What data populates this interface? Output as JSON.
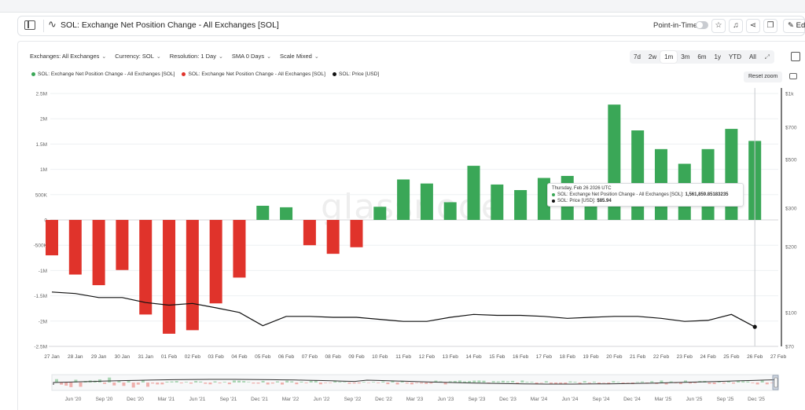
{
  "header": {
    "title": "SOL: Exchange Net Position Change - All Exchanges [SOL]",
    "point_in_time_label": "Point-in-Time",
    "edit_label": "Edi"
  },
  "filters": [
    {
      "label": "Exchanges: All Exchanges"
    },
    {
      "label": "Currency: SOL"
    },
    {
      "label": "Resolution: 1 Day"
    },
    {
      "label": "SMA 0 Days"
    },
    {
      "label": "Scale Mixed"
    }
  ],
  "ranges": [
    {
      "label": "7d",
      "active": false
    },
    {
      "label": "2w",
      "active": false
    },
    {
      "label": "1m",
      "active": true
    },
    {
      "label": "3m",
      "active": false
    },
    {
      "label": "6m",
      "active": false
    },
    {
      "label": "1y",
      "active": false
    },
    {
      "label": "YTD",
      "active": false
    },
    {
      "label": "All",
      "active": false
    }
  ],
  "reset_zoom_label": "Reset zoom",
  "watermark": "glassnode",
  "legend": [
    {
      "label": "SOL: Exchange Net Position Change - All Exchanges [SOL]",
      "color": "#3aa757"
    },
    {
      "label": "SOL: Exchange Net Position Change - All Exchanges [SOL]",
      "color": "#e0332b"
    },
    {
      "label": "SOL: Price [USD]",
      "color": "#111111"
    }
  ],
  "tooltip": {
    "date": "Thursday, Feb 26 2026 UTC",
    "row1_label": "SOL: Exchange Net Position Change - All Exchanges [SOL]:",
    "row1_value": "1,561,859.85183235",
    "row2_label": "SOL: Price [USD]:",
    "row2_value": "$85.94"
  },
  "colors": {
    "positive": "#3aa757",
    "negative": "#e0332b",
    "price": "#111111"
  },
  "chart_data": {
    "type": "bar",
    "title": "SOL: Exchange Net Position Change - All Exchanges [SOL]",
    "categories": [
      "27 Jan",
      "28 Jan",
      "29 Jan",
      "30 Jan",
      "31 Jan",
      "01 Feb",
      "02 Feb",
      "03 Feb",
      "04 Feb",
      "05 Feb",
      "06 Feb",
      "07 Feb",
      "08 Feb",
      "09 Feb",
      "10 Feb",
      "11 Feb",
      "12 Feb",
      "13 Feb",
      "14 Feb",
      "15 Feb",
      "16 Feb",
      "17 Feb",
      "18 Feb",
      "19 Feb",
      "20 Feb",
      "21 Feb",
      "22 Feb",
      "23 Feb",
      "24 Feb",
      "25 Feb",
      "26 Feb",
      "27 Feb"
    ],
    "series": [
      {
        "name": "SOL: Exchange Net Position Change - All Exchanges [SOL]",
        "axis": "left",
        "values": [
          -700000,
          -1080000,
          -1290000,
          -990000,
          -1870000,
          -2250000,
          -2180000,
          -1650000,
          -1140000,
          280000,
          250000,
          -500000,
          -670000,
          -540000,
          260000,
          800000,
          720000,
          350000,
          1070000,
          700000,
          590000,
          830000,
          870000,
          520000,
          2280000,
          1770000,
          1400000,
          1110000,
          1400000,
          1800000,
          1561859.85,
          null
        ]
      },
      {
        "name": "SOL: Price [USD]",
        "axis": "right",
        "type": "line",
        "values": [
          124,
          122,
          117,
          117,
          111,
          108,
          110,
          105,
          100,
          87,
          96,
          96,
          95,
          95,
          93,
          91,
          91,
          95,
          98,
          97,
          97,
          96,
          94,
          95,
          96,
          96,
          94,
          91,
          92,
          98,
          85.94,
          null
        ]
      }
    ],
    "y_left": {
      "ylim": [
        -2500000,
        2500000
      ],
      "ticks": [
        "2.5M",
        "2M",
        "1.5M",
        "1M",
        "500K",
        "0",
        "-500K",
        "-1M",
        "-1.5M",
        "-2M",
        "-2.5M"
      ]
    },
    "y_right": {
      "scale": "log",
      "ylim": [
        70,
        1000
      ],
      "ticks": [
        "$1k",
        "$700",
        "$500",
        "$300",
        "$200",
        "$100",
        "$70"
      ]
    },
    "grid": true,
    "legend_position": "top-left"
  },
  "navigator": {
    "labels": [
      "Jun '20",
      "Sep '20",
      "Dec '20",
      "Mar '21",
      "Jun '21",
      "Sep '21",
      "Dec '21",
      "Mar '22",
      "Jun '22",
      "Sep '22",
      "Dec '22",
      "Mar '23",
      "Jun '23",
      "Sep '23",
      "Dec '23",
      "Mar '24",
      "Jun '24",
      "Sep '24",
      "Dec '24",
      "Mar '25",
      "Jun '25",
      "Sep '25",
      "Dec '25"
    ]
  }
}
